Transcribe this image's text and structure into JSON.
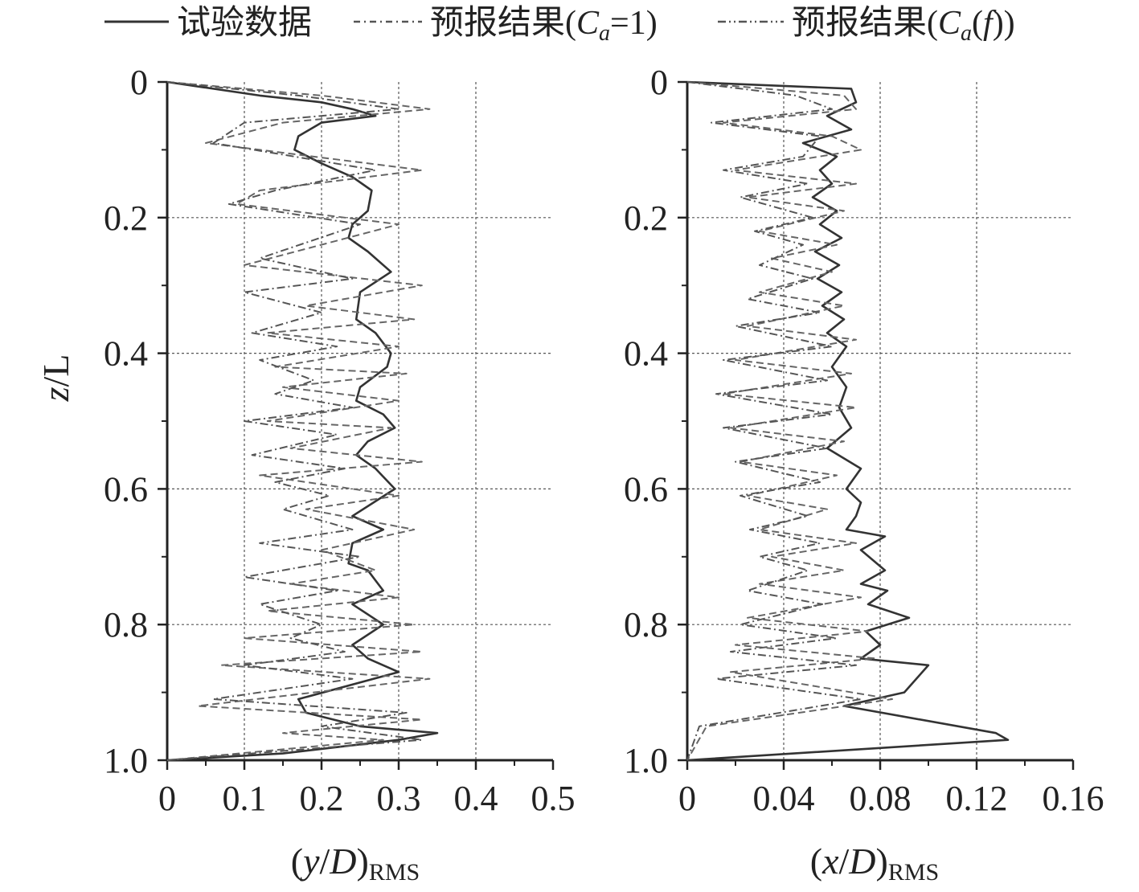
{
  "chart_data": [
    {
      "type": "line",
      "panel": "left",
      "xlabel_open": "(",
      "xlabel_var": "y",
      "xlabel_sep": "/",
      "xlabel_denom": "D",
      "xlabel_close": ")",
      "xlabel_sub": "RMS",
      "ylabel_var": "z",
      "ylabel_rest": "/L",
      "xlim": [
        0,
        0.5
      ],
      "ylim": [
        0,
        1.0
      ],
      "y_inverted": true,
      "xticks": [
        0,
        0.1,
        0.2,
        0.3,
        0.4,
        0.5
      ],
      "xtick_labels": [
        "0",
        "0.1",
        "0.2",
        "0.3",
        "0.4",
        "0.5"
      ],
      "yticks": [
        0,
        0.2,
        0.4,
        0.6,
        0.8,
        1.0
      ],
      "ytick_labels": [
        "0",
        "0.2",
        "0.4",
        "0.6",
        "0.8",
        "1.0"
      ],
      "grid": true,
      "series": [
        {
          "name": "试验数据",
          "style": "solid",
          "x": [
            0.0,
            0.12,
            0.2,
            0.24,
            0.27,
            0.2,
            0.17,
            0.165,
            0.2,
            0.24,
            0.265,
            0.26,
            0.24,
            0.235,
            0.26,
            0.29,
            0.25,
            0.245,
            0.27,
            0.29,
            0.285,
            0.25,
            0.245,
            0.28,
            0.295,
            0.26,
            0.245,
            0.27,
            0.295,
            0.24,
            0.28,
            0.24,
            0.235,
            0.26,
            0.28,
            0.24,
            0.28,
            0.24,
            0.26,
            0.3,
            0.17,
            0.18,
            0.25,
            0.35,
            0.3,
            0.15,
            0.0
          ],
          "y": [
            0.0,
            0.02,
            0.03,
            0.04,
            0.05,
            0.06,
            0.08,
            0.1,
            0.12,
            0.14,
            0.16,
            0.19,
            0.21,
            0.23,
            0.25,
            0.28,
            0.31,
            0.35,
            0.37,
            0.4,
            0.42,
            0.45,
            0.47,
            0.49,
            0.51,
            0.53,
            0.55,
            0.57,
            0.6,
            0.64,
            0.66,
            0.68,
            0.71,
            0.72,
            0.75,
            0.77,
            0.8,
            0.83,
            0.85,
            0.87,
            0.91,
            0.93,
            0.95,
            0.96,
            0.97,
            0.99,
            1.0
          ]
        },
        {
          "name": "预报结果(C_a=1)",
          "style": "dashed",
          "x": [
            0.0,
            0.2,
            0.34,
            0.15,
            0.05,
            0.33,
            0.12,
            0.09,
            0.3,
            0.1,
            0.33,
            0.18,
            0.32,
            0.13,
            0.3,
            0.14,
            0.31,
            0.15,
            0.3,
            0.13,
            0.29,
            0.16,
            0.33,
            0.12,
            0.3,
            0.18,
            0.32,
            0.2,
            0.27,
            0.16,
            0.3,
            0.13,
            0.32,
            0.1,
            0.33,
            0.07,
            0.34,
            0.04,
            0.33,
            0.15,
            0.28,
            0.0
          ],
          "y": [
            0.0,
            0.02,
            0.04,
            0.06,
            0.09,
            0.13,
            0.16,
            0.18,
            0.21,
            0.27,
            0.3,
            0.33,
            0.35,
            0.37,
            0.39,
            0.42,
            0.43,
            0.45,
            0.47,
            0.5,
            0.51,
            0.54,
            0.56,
            0.58,
            0.61,
            0.63,
            0.66,
            0.69,
            0.72,
            0.74,
            0.76,
            0.78,
            0.8,
            0.82,
            0.84,
            0.86,
            0.88,
            0.92,
            0.94,
            0.96,
            0.97,
            1.0
          ]
        },
        {
          "name": "预报结果(C_a(f))",
          "style": "dashdot",
          "x": [
            0.0,
            0.17,
            0.3,
            0.1,
            0.06,
            0.27,
            0.14,
            0.08,
            0.25,
            0.12,
            0.24,
            0.1,
            0.2,
            0.11,
            0.22,
            0.12,
            0.19,
            0.14,
            0.24,
            0.1,
            0.22,
            0.11,
            0.23,
            0.14,
            0.21,
            0.15,
            0.24,
            0.12,
            0.25,
            0.1,
            0.22,
            0.12,
            0.2,
            0.16,
            0.23,
            0.1,
            0.24,
            0.06,
            0.31,
            0.2,
            0.33,
            0.0
          ],
          "y": [
            0.0,
            0.02,
            0.04,
            0.06,
            0.09,
            0.13,
            0.16,
            0.18,
            0.21,
            0.26,
            0.29,
            0.31,
            0.34,
            0.37,
            0.39,
            0.41,
            0.44,
            0.46,
            0.48,
            0.5,
            0.52,
            0.55,
            0.57,
            0.59,
            0.61,
            0.63,
            0.66,
            0.68,
            0.7,
            0.73,
            0.75,
            0.77,
            0.8,
            0.82,
            0.84,
            0.86,
            0.88,
            0.91,
            0.93,
            0.95,
            0.97,
            1.0
          ]
        }
      ]
    },
    {
      "type": "line",
      "panel": "right",
      "xlabel_open": "(",
      "xlabel_var": "x",
      "xlabel_sep": "/",
      "xlabel_denom": "D",
      "xlabel_close": ")",
      "xlabel_sub": "RMS",
      "xlim": [
        0,
        0.16
      ],
      "ylim": [
        0,
        1.0
      ],
      "y_inverted": true,
      "xticks": [
        0,
        0.04,
        0.08,
        0.12,
        0.16
      ],
      "xtick_labels": [
        "0",
        "0.04",
        "0.08",
        "0.12",
        "0.16"
      ],
      "yticks": [
        0,
        0.2,
        0.4,
        0.6,
        0.8,
        1.0
      ],
      "ytick_labels": [
        "0",
        "0.2",
        "0.4",
        "0.6",
        "0.8",
        "1.0"
      ],
      "grid": true,
      "series": [
        {
          "name": "试验数据",
          "style": "solid",
          "x": [
            0.0,
            0.068,
            0.07,
            0.058,
            0.068,
            0.048,
            0.062,
            0.055,
            0.06,
            0.052,
            0.062,
            0.055,
            0.064,
            0.053,
            0.063,
            0.054,
            0.064,
            0.056,
            0.065,
            0.058,
            0.066,
            0.06,
            0.066,
            0.063,
            0.068,
            0.058,
            0.072,
            0.066,
            0.072,
            0.07,
            0.066,
            0.082,
            0.072,
            0.082,
            0.072,
            0.083,
            0.075,
            0.092,
            0.074,
            0.08,
            0.072,
            0.1,
            0.09,
            0.065,
            0.128,
            0.133,
            0.0
          ],
          "y": [
            0.0,
            0.01,
            0.03,
            0.05,
            0.07,
            0.09,
            0.11,
            0.13,
            0.15,
            0.17,
            0.19,
            0.21,
            0.23,
            0.25,
            0.27,
            0.29,
            0.31,
            0.33,
            0.35,
            0.37,
            0.39,
            0.42,
            0.45,
            0.48,
            0.51,
            0.54,
            0.57,
            0.6,
            0.62,
            0.64,
            0.66,
            0.67,
            0.69,
            0.72,
            0.74,
            0.75,
            0.77,
            0.79,
            0.81,
            0.83,
            0.85,
            0.86,
            0.9,
            0.92,
            0.96,
            0.97,
            1.0
          ]
        },
        {
          "name": "预报结果(C_a=1)",
          "style": "dashed",
          "x": [
            0.0,
            0.065,
            0.07,
            0.015,
            0.06,
            0.072,
            0.02,
            0.07,
            0.025,
            0.065,
            0.03,
            0.062,
            0.035,
            0.06,
            0.03,
            0.065,
            0.025,
            0.07,
            0.02,
            0.068,
            0.015,
            0.07,
            0.018,
            0.065,
            0.022,
            0.062,
            0.025,
            0.058,
            0.03,
            0.07,
            0.035,
            0.065,
            0.03,
            0.072,
            0.025,
            0.075,
            0.02,
            0.078,
            0.018,
            0.085,
            0.008,
            0.0
          ],
          "y": [
            0.0,
            0.02,
            0.04,
            0.06,
            0.08,
            0.1,
            0.13,
            0.15,
            0.17,
            0.19,
            0.22,
            0.24,
            0.26,
            0.28,
            0.31,
            0.33,
            0.36,
            0.38,
            0.41,
            0.43,
            0.46,
            0.48,
            0.51,
            0.53,
            0.56,
            0.58,
            0.61,
            0.63,
            0.66,
            0.68,
            0.7,
            0.72,
            0.74,
            0.76,
            0.79,
            0.81,
            0.83,
            0.85,
            0.87,
            0.91,
            0.95,
            1.0
          ]
        },
        {
          "name": "预报结果(C_a(f))",
          "style": "dashdot",
          "x": [
            0.0,
            0.045,
            0.06,
            0.01,
            0.055,
            0.048,
            0.015,
            0.05,
            0.022,
            0.052,
            0.028,
            0.048,
            0.03,
            0.052,
            0.025,
            0.055,
            0.02,
            0.06,
            0.015,
            0.058,
            0.012,
            0.06,
            0.015,
            0.058,
            0.02,
            0.055,
            0.022,
            0.05,
            0.026,
            0.055,
            0.03,
            0.05,
            0.025,
            0.056,
            0.022,
            0.062,
            0.018,
            0.07,
            0.012,
            0.072,
            0.005,
            0.0
          ],
          "y": [
            0.0,
            0.02,
            0.04,
            0.06,
            0.08,
            0.11,
            0.13,
            0.15,
            0.17,
            0.2,
            0.22,
            0.24,
            0.27,
            0.29,
            0.32,
            0.34,
            0.36,
            0.39,
            0.41,
            0.44,
            0.46,
            0.49,
            0.51,
            0.54,
            0.56,
            0.59,
            0.61,
            0.64,
            0.66,
            0.68,
            0.7,
            0.72,
            0.75,
            0.77,
            0.8,
            0.82,
            0.84,
            0.86,
            0.88,
            0.91,
            0.95,
            1.0
          ]
        }
      ]
    }
  ],
  "legend": {
    "items": [
      {
        "style": "solid",
        "label": "试验数据"
      },
      {
        "style": "dashed",
        "label_pre": "预报结果(",
        "label_c": "C",
        "label_sub": "a",
        "label_post": "=1)"
      },
      {
        "style": "dashdot",
        "label_pre": "预报结果(",
        "label_c": "C",
        "label_sub": "a",
        "label_mid": "(",
        "label_f": "f",
        "label_post": "))"
      }
    ]
  },
  "colors": {
    "line": "#333333",
    "grid": "#555555",
    "axis": "#222222"
  }
}
